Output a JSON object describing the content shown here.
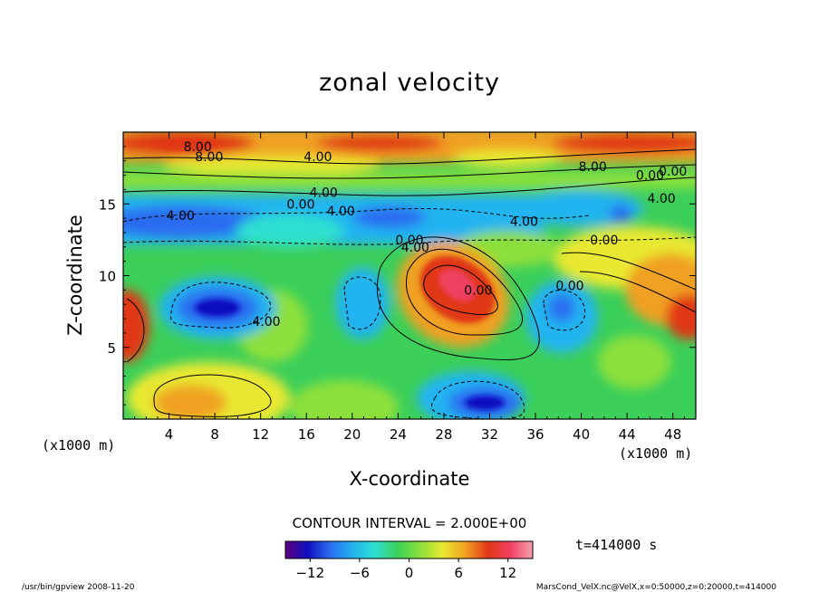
{
  "chart_data": {
    "type": "heatmap",
    "title": "zonal velocity",
    "xlabel": "X-coordinate",
    "ylabel": "Z-coordinate",
    "x_unit_left": "(x1000 m)",
    "x_unit_right": "(x1000 m)",
    "x_ticks": [
      4,
      8,
      12,
      16,
      20,
      24,
      28,
      32,
      36,
      40,
      44,
      48
    ],
    "y_ticks": [
      5,
      10,
      15
    ],
    "xlim": [
      0,
      50
    ],
    "ylim": [
      0,
      20
    ],
    "contour_interval": "CONTOUR INTERVAL = 2.000E+00",
    "time_label": "t=414000 s",
    "colorbar": {
      "min": -15,
      "max": 15,
      "ticks": [
        -12,
        -6,
        0,
        6,
        12
      ],
      "tick_labels": [
        "−12",
        "−6",
        "0",
        "6",
        "12"
      ]
    },
    "contour_labels": [
      {
        "text": "8.00",
        "x": 6.5,
        "y": 19.0
      },
      {
        "text": "8.00",
        "x": 7.5,
        "y": 18.3
      },
      {
        "text": "4.00",
        "x": 17.0,
        "y": 18.3
      },
      {
        "text": "0.00",
        "x": 15.5,
        "y": 15.0
      },
      {
        "text": "4.00",
        "x": 17.5,
        "y": 15.8
      },
      {
        "text": "4.00",
        "x": 19.0,
        "y": 14.5
      },
      {
        "text": "4.00",
        "x": 5.0,
        "y": 14.2
      },
      {
        "text": "4.00",
        "x": 35.0,
        "y": 13.8
      },
      {
        "text": "0.00",
        "x": 25.0,
        "y": 12.5
      },
      {
        "text": "4.00",
        "x": 25.5,
        "y": 12.0
      },
      {
        "text": "0.00",
        "x": 42.0,
        "y": 12.5
      },
      {
        "text": "0.00",
        "x": 39.0,
        "y": 9.3
      },
      {
        "text": "8.00",
        "x": 41.0,
        "y": 17.6
      },
      {
        "text": "0.00",
        "x": 46.0,
        "y": 17.0
      },
      {
        "text": "0.00",
        "x": 48.0,
        "y": 17.3
      },
      {
        "text": "4.00",
        "x": 47.0,
        "y": 15.4
      },
      {
        "text": "4.00",
        "x": 12.5,
        "y": 6.8
      },
      {
        "text": "0.00",
        "x": 31.0,
        "y": 9.0
      }
    ]
  },
  "footer": {
    "left": "/usr/bin/gpview   2008-11-20",
    "right": "MarsCond_VelX.nc@VelX,x=0:50000,z=0:20000,t=414000"
  },
  "colors": {
    "colormap": [
      "#5b0080",
      "#1010c0",
      "#2a6cf0",
      "#23b4f0",
      "#2fe0d0",
      "#3ccf5a",
      "#8de03a",
      "#e8e830",
      "#f0a020",
      "#e03818",
      "#f04060",
      "#f5a0b0"
    ]
  }
}
